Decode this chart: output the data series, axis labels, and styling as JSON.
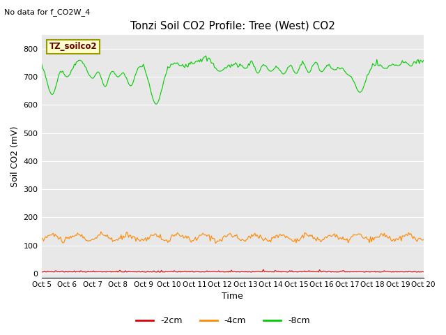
{
  "title": "Tonzi Soil CO2 Profile: Tree (West) CO2",
  "no_data_text": "No data for f_CO2W_4",
  "ylabel": "Soil CO2 (mV)",
  "xlabel": "Time",
  "background_color": "#e8e8e8",
  "figure_background": "#ffffff",
  "legend_box_label": "TZ_soilco2",
  "legend_box_color": "#ffffcc",
  "legend_box_edge": "#999900",
  "yticks": [
    0,
    100,
    200,
    300,
    400,
    500,
    600,
    700,
    800
  ],
  "ylim": [
    -15,
    850
  ],
  "xtick_labels": [
    "Oct 5",
    "Oct 6",
    "Oct 7",
    "Oct 8",
    "Oct 9",
    "Oct 10",
    "Oct 11",
    "Oct 12",
    "Oct 13",
    "Oct 14",
    "Oct 15",
    "Oct 16",
    "Oct 17",
    "Oct 18",
    "Oct 19",
    "Oct 20"
  ],
  "series": [
    {
      "label": "-2cm",
      "color": "#dd0000"
    },
    {
      "label": "-4cm",
      "color": "#ff8800"
    },
    {
      "label": "-8cm",
      "color": "#00cc00"
    }
  ]
}
